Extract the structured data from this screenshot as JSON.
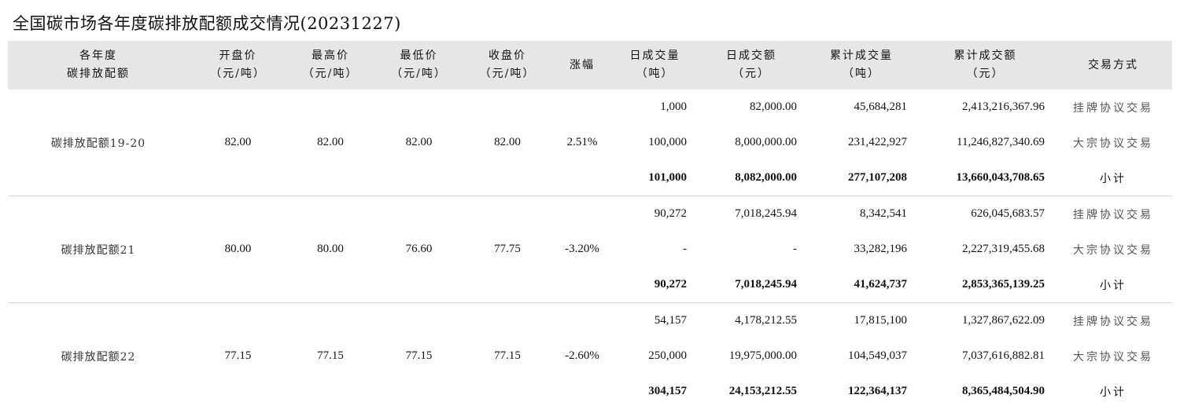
{
  "title": "全国碳市场各年度碳排放配额成交情况(20231227)",
  "headers": [
    [
      "各年度",
      "碳排放配额"
    ],
    [
      "开盘价",
      "（元/吨）"
    ],
    [
      "最高价",
      "（元/吨）"
    ],
    [
      "最低价",
      "（元/吨）"
    ],
    [
      "收盘价",
      "（元/吨）"
    ],
    [
      "涨幅",
      ""
    ],
    [
      "日成交量",
      "（吨）"
    ],
    [
      "日成交额",
      "（元）"
    ],
    [
      "累计成交量",
      "（吨）"
    ],
    [
      "累计成交额",
      "（元）"
    ],
    [
      "交易方式",
      ""
    ]
  ],
  "groups": [
    {
      "name": "碳排放配额19-20",
      "open": "82.00",
      "high": "82.00",
      "low": "82.00",
      "close": "82.00",
      "change": "2.51%",
      "rows": [
        {
          "vol": "1,000",
          "amt": "82,000.00",
          "cum_vol": "45,684,281",
          "cum_amt": "2,413,216,367.96",
          "mode": "挂牌协议交易"
        },
        {
          "vol": "100,000",
          "amt": "8,000,000.00",
          "cum_vol": "231,422,927",
          "cum_amt": "11,246,827,340.69",
          "mode": "大宗协议交易"
        },
        {
          "vol": "101,000",
          "amt": "8,082,000.00",
          "cum_vol": "277,107,208",
          "cum_amt": "13,660,043,708.65",
          "mode": "小计"
        }
      ]
    },
    {
      "name": "碳排放配额21",
      "open": "80.00",
      "high": "80.00",
      "low": "76.60",
      "close": "77.75",
      "change": "-3.20%",
      "rows": [
        {
          "vol": "90,272",
          "amt": "7,018,245.94",
          "cum_vol": "8,342,541",
          "cum_amt": "626,045,683.57",
          "mode": "挂牌协议交易"
        },
        {
          "vol": "-",
          "amt": "-",
          "cum_vol": "33,282,196",
          "cum_amt": "2,227,319,455.68",
          "mode": "大宗协议交易"
        },
        {
          "vol": "90,272",
          "amt": "7,018,245.94",
          "cum_vol": "41,624,737",
          "cum_amt": "2,853,365,139.25",
          "mode": "小计"
        }
      ]
    },
    {
      "name": "碳排放配额22",
      "open": "77.15",
      "high": "77.15",
      "low": "77.15",
      "close": "77.15",
      "change": "-2.60%",
      "rows": [
        {
          "vol": "54,157",
          "amt": "4,178,212.55",
          "cum_vol": "17,815,100",
          "cum_amt": "1,327,867,622.09",
          "mode": "挂牌协议交易"
        },
        {
          "vol": "250,000",
          "amt": "19,975,000.00",
          "cum_vol": "104,549,037",
          "cum_amt": "7,037,616,882.81",
          "mode": "大宗协议交易"
        },
        {
          "vol": "304,157",
          "amt": "24,153,212.55",
          "cum_vol": "122,364,137",
          "cum_amt": "8,365,484,504.90",
          "mode": "小计"
        }
      ]
    }
  ]
}
